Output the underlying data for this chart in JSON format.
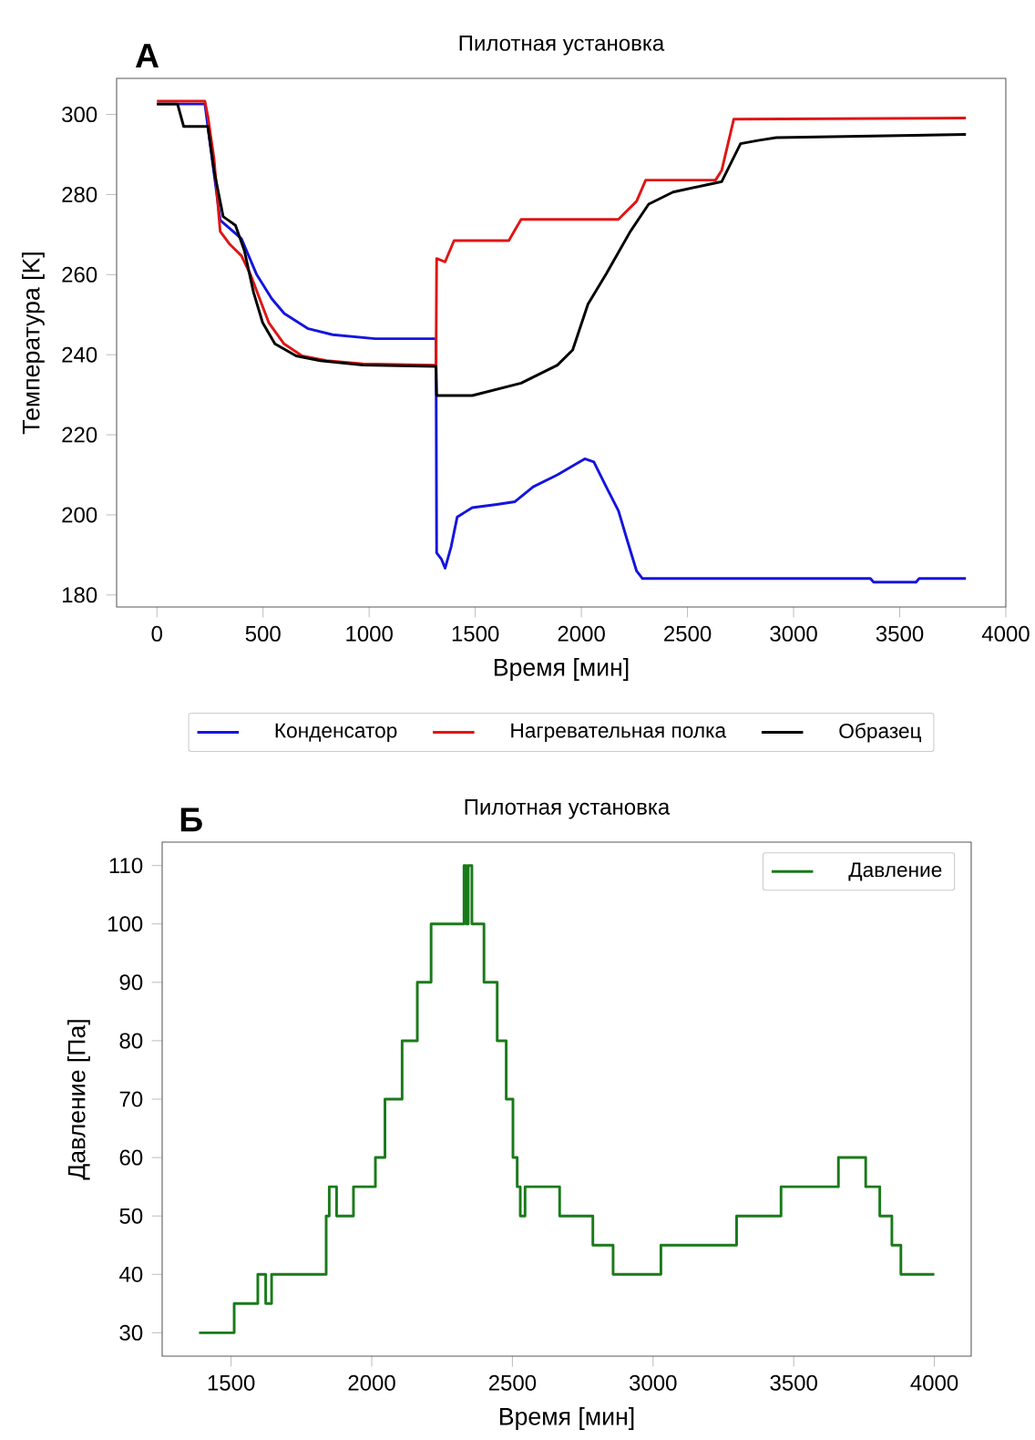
{
  "chart_data": [
    {
      "type": "line",
      "title": "Пилотная установка",
      "annotations": [
        "А"
      ],
      "xlabel": "Время [мин]",
      "ylabel": "Температура [K]",
      "xlim": [
        -190,
        4000
      ],
      "ylim": [
        177,
        309
      ],
      "xticks": [
        0,
        500,
        1000,
        1500,
        2000,
        2500,
        3000,
        3500,
        4000
      ],
      "yticks": [
        180,
        200,
        220,
        240,
        260,
        280,
        300
      ],
      "legend": "bottom",
      "series": [
        {
          "name": "Конденсатор",
          "color": "#1515dd",
          "x": [
            0,
            226,
            298,
            398,
            470,
            541,
            600,
            713,
            828,
            1028,
            1315,
            1318,
            1340,
            1358,
            1386,
            1415,
            1486,
            1601,
            1687,
            1773,
            1887,
            2016,
            2059,
            2117,
            2175,
            2217,
            2260,
            2288,
            3362,
            3377,
            3577,
            3591,
            3812
          ],
          "values": [
            302.6,
            302.6,
            273.6,
            269,
            260,
            254,
            250.3,
            246.5,
            245,
            244,
            244,
            190.5,
            189,
            186.7,
            192,
            199.5,
            201.8,
            202.6,
            203.3,
            207,
            210,
            214,
            213.2,
            207,
            201,
            193.5,
            186,
            184.1,
            184.1,
            183.2,
            183.2,
            184.1,
            184.1
          ]
        },
        {
          "name": "Нагревательная полка",
          "color": "#e01515",
          "x": [
            0,
            226,
            240,
            269,
            298,
            341,
            398,
            441,
            484,
            527,
            599,
            684,
            799,
            971,
            1315,
            1318,
            1358,
            1400,
            1658,
            1716,
            2174,
            2260,
            2303,
            2632,
            2661,
            2718,
            3812
          ],
          "values": [
            303.3,
            303.3,
            299.5,
            289,
            270.8,
            267.7,
            264.7,
            260,
            254,
            248,
            242.7,
            239.7,
            238.5,
            237.7,
            237.4,
            264,
            263.2,
            268.5,
            268.5,
            273.8,
            273.8,
            278.3,
            283.6,
            283.6,
            286,
            298.8,
            299.1
          ]
        },
        {
          "name": "Образец",
          "color": "#000000",
          "x": [
            0,
            97,
            126,
            226,
            240,
            269,
            312,
            370,
            412,
            455,
            498,
            556,
            656,
            770,
            971,
            1315,
            1318,
            1486,
            1716,
            1887,
            1959,
            2031,
            2117,
            2231,
            2317,
            2432,
            2632,
            2661,
            2750,
            2832,
            2918,
            3812
          ],
          "values": [
            302.6,
            302.6,
            297,
            297,
            297,
            286,
            274.5,
            272.3,
            266,
            255.6,
            248,
            242.7,
            239.7,
            238.5,
            237.4,
            237.1,
            229.8,
            229.8,
            232.9,
            237.4,
            241.2,
            252.6,
            260.2,
            270.8,
            277.6,
            280.6,
            282.9,
            283.2,
            292.7,
            293.5,
            294.2,
            295
          ]
        }
      ]
    },
    {
      "type": "step",
      "title": "Пилотная установка",
      "annotations": [
        "Б"
      ],
      "xlabel": "Время [мин]",
      "ylabel": "Давление [Па]",
      "xlim": [
        1255,
        4131
      ],
      "ylim": [
        26,
        114
      ],
      "xticks": [
        1500,
        2000,
        2500,
        3000,
        3500,
        4000
      ],
      "yticks": [
        30,
        40,
        50,
        60,
        70,
        80,
        90,
        100,
        110
      ],
      "legend": "top right",
      "series": [
        {
          "name": "Давление",
          "color": "#1a7a1a",
          "x": [
            1386,
            1511,
            1595,
            1623,
            1644,
            1838,
            1849,
            1875,
            1935,
            2013,
            2047,
            2108,
            2162,
            2211,
            2328,
            2336,
            2343,
            2356,
            2399,
            2446,
            2478,
            2502,
            2517,
            2528,
            2545,
            2668,
            2786,
            2858,
            3028,
            3297,
            3455,
            3659,
            3756,
            3806,
            3849,
            3881,
            4000
          ],
          "values": [
            30,
            35,
            40,
            35,
            40,
            50,
            55,
            50,
            55,
            60,
            70,
            80,
            90,
            100,
            110,
            100,
            110,
            100,
            90,
            80,
            70,
            60,
            55,
            50,
            55,
            50,
            45,
            40,
            45,
            50,
            55,
            60,
            55,
            50,
            45,
            40,
            40
          ]
        }
      ]
    }
  ]
}
